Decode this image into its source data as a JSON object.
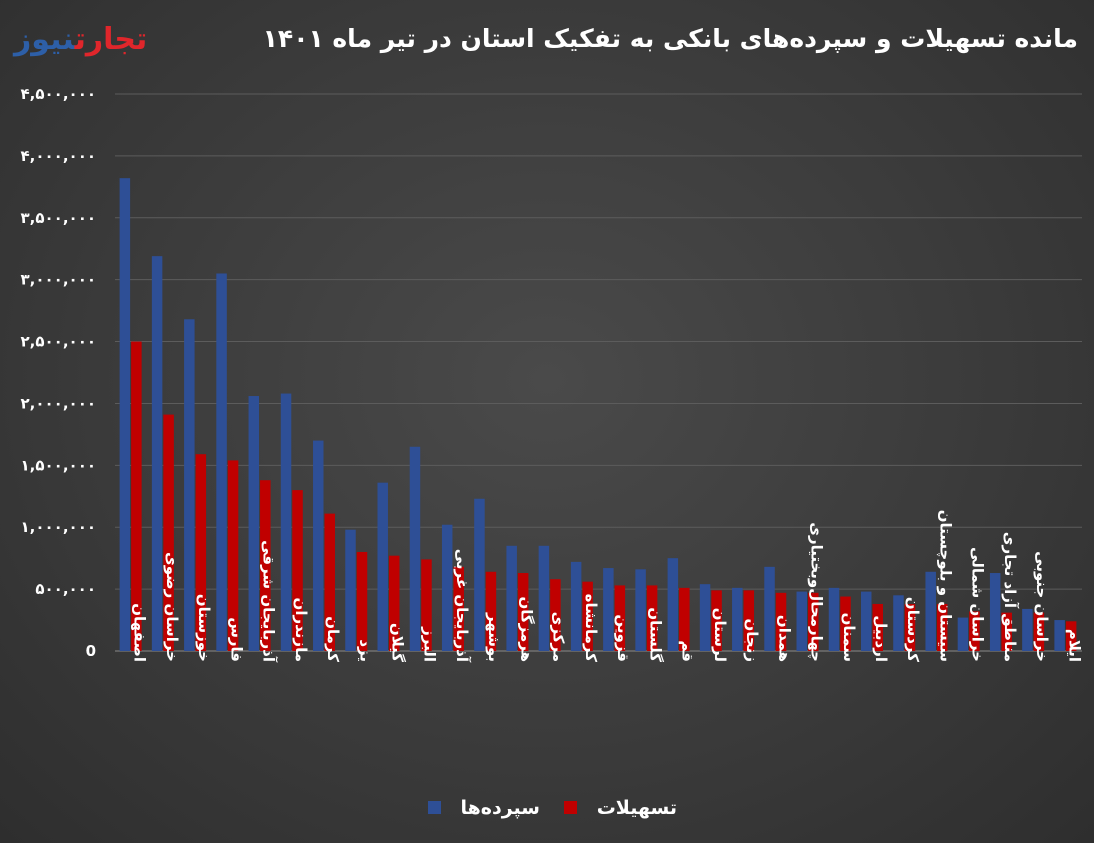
{
  "header": {
    "logo_part1": "تجارت",
    "logo_part2": "نیوز",
    "title": "مانده تسهیلات و سپرده‌های بانکی به تفکیک استان در تیر ماه ۱۴۰۱"
  },
  "colors": {
    "series_deposits": "#2e4f96",
    "series_loans": "#c00000",
    "grid": "#5c5c5c",
    "text": "#ffffff"
  },
  "chart_data": {
    "type": "bar",
    "title": "مانده تسهیلات و سپرده‌های بانکی به تفکیک استان در تیر ماه ۱۴۰۱",
    "xlabel": "",
    "ylabel": "",
    "ylim": [
      0,
      4500000
    ],
    "yticks": [
      0,
      500000,
      1000000,
      1500000,
      2000000,
      2500000,
      3000000,
      3500000,
      4000000,
      4500000
    ],
    "ytick_labels": [
      "0",
      "۵۰۰,۰۰۰",
      "۱,۰۰۰,۰۰۰",
      "۱,۵۰۰,۰۰۰",
      "۲,۰۰۰,۰۰۰",
      "۲,۵۰۰,۰۰۰",
      "۳,۰۰۰,۰۰۰",
      "۳,۵۰۰,۰۰۰",
      "۴,۰۰۰,۰۰۰",
      "۴,۵۰۰,۰۰۰"
    ],
    "grid": true,
    "legend_position": "bottom",
    "categories": [
      "اصفهان",
      "خراسان رضوی",
      "خوزستان",
      "فارس",
      "آذربایجان شرقی",
      "مازندران",
      "کرمان",
      "یزد",
      "گیلان",
      "البرز",
      "آذربایجان غربی",
      "بوشهر",
      "هرمزگان",
      "مرکزی",
      "کرمانشاه",
      "قزوین",
      "گلستان",
      "قم",
      "لرستان",
      "زنجان",
      "همدان",
      "چهارمحال‌وبختیاری",
      "سمنان",
      "اردبیل",
      "کردستان",
      "سیستان و بلوچستان",
      "خراسان شمالی",
      "مناطق آزاد تجاری",
      "خراسان جنوبی",
      "ایلام"
    ],
    "series": [
      {
        "name": "سپرده‌ها",
        "values": [
          3820000,
          3190000,
          2680000,
          3050000,
          2060000,
          2080000,
          1700000,
          980000,
          1360000,
          1650000,
          1020000,
          1230000,
          850000,
          850000,
          720000,
          670000,
          660000,
          750000,
          540000,
          510000,
          680000,
          480000,
          510000,
          480000,
          450000,
          640000,
          270000,
          630000,
          340000,
          250000
        ]
      },
      {
        "name": "تسهیلات",
        "values": [
          2500000,
          1910000,
          1590000,
          1540000,
          1380000,
          1300000,
          1110000,
          800000,
          770000,
          740000,
          680000,
          640000,
          630000,
          580000,
          560000,
          530000,
          530000,
          510000,
          490000,
          490000,
          470000,
          470000,
          440000,
          380000,
          380000,
          380000,
          320000,
          310000,
          310000,
          240000
        ]
      }
    ]
  }
}
